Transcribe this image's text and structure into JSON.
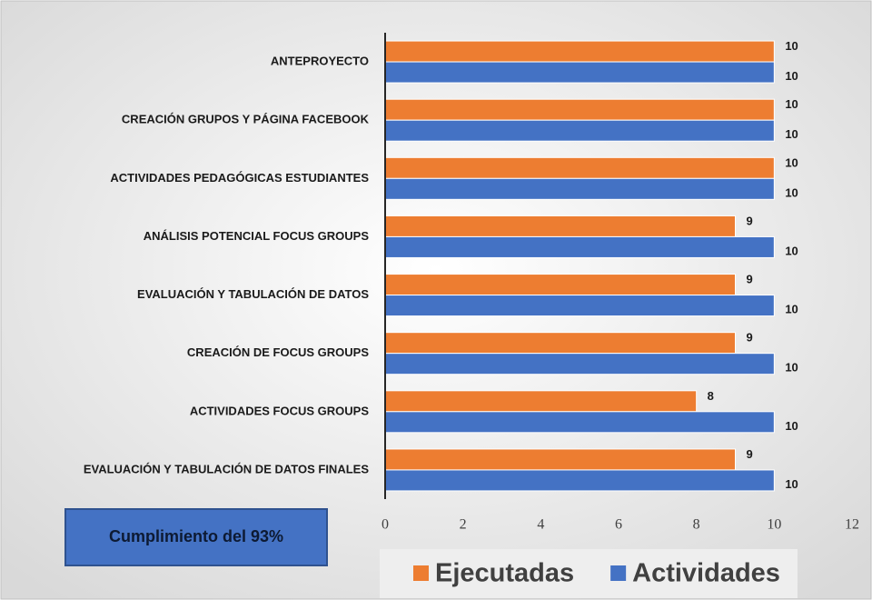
{
  "chart_data": {
    "type": "bar",
    "orientation": "horizontal",
    "categories": [
      "ANTEPROYECTO",
      "CREACIÓN GRUPOS Y PÁGINA FACEBOOK",
      "ACTIVIDADES PEDAGÓGICAS ESTUDIANTES",
      "ANÁLISIS POTENCIAL FOCUS GROUPS",
      "EVALUACIÓN Y TABULACIÓN DE DATOS",
      "CREACIÓN DE FOCUS GROUPS",
      "ACTIVIDADES FOCUS GROUPS",
      "EVALUACIÓN Y TABULACIÓN DE DATOS FINALES"
    ],
    "series": [
      {
        "name": "Ejecutadas",
        "color": "#ed7d31",
        "values": [
          10,
          10,
          10,
          9,
          9,
          9,
          8,
          9
        ]
      },
      {
        "name": "Actividades",
        "color": "#4472c4",
        "values": [
          10,
          10,
          10,
          10,
          10,
          10,
          10,
          10
        ]
      }
    ],
    "xlim": [
      0,
      12
    ],
    "xticks": [
      0,
      2,
      4,
      6,
      8,
      10,
      12
    ],
    "annotation": "Cumplimiento del 93%",
    "legend": "bottom"
  }
}
